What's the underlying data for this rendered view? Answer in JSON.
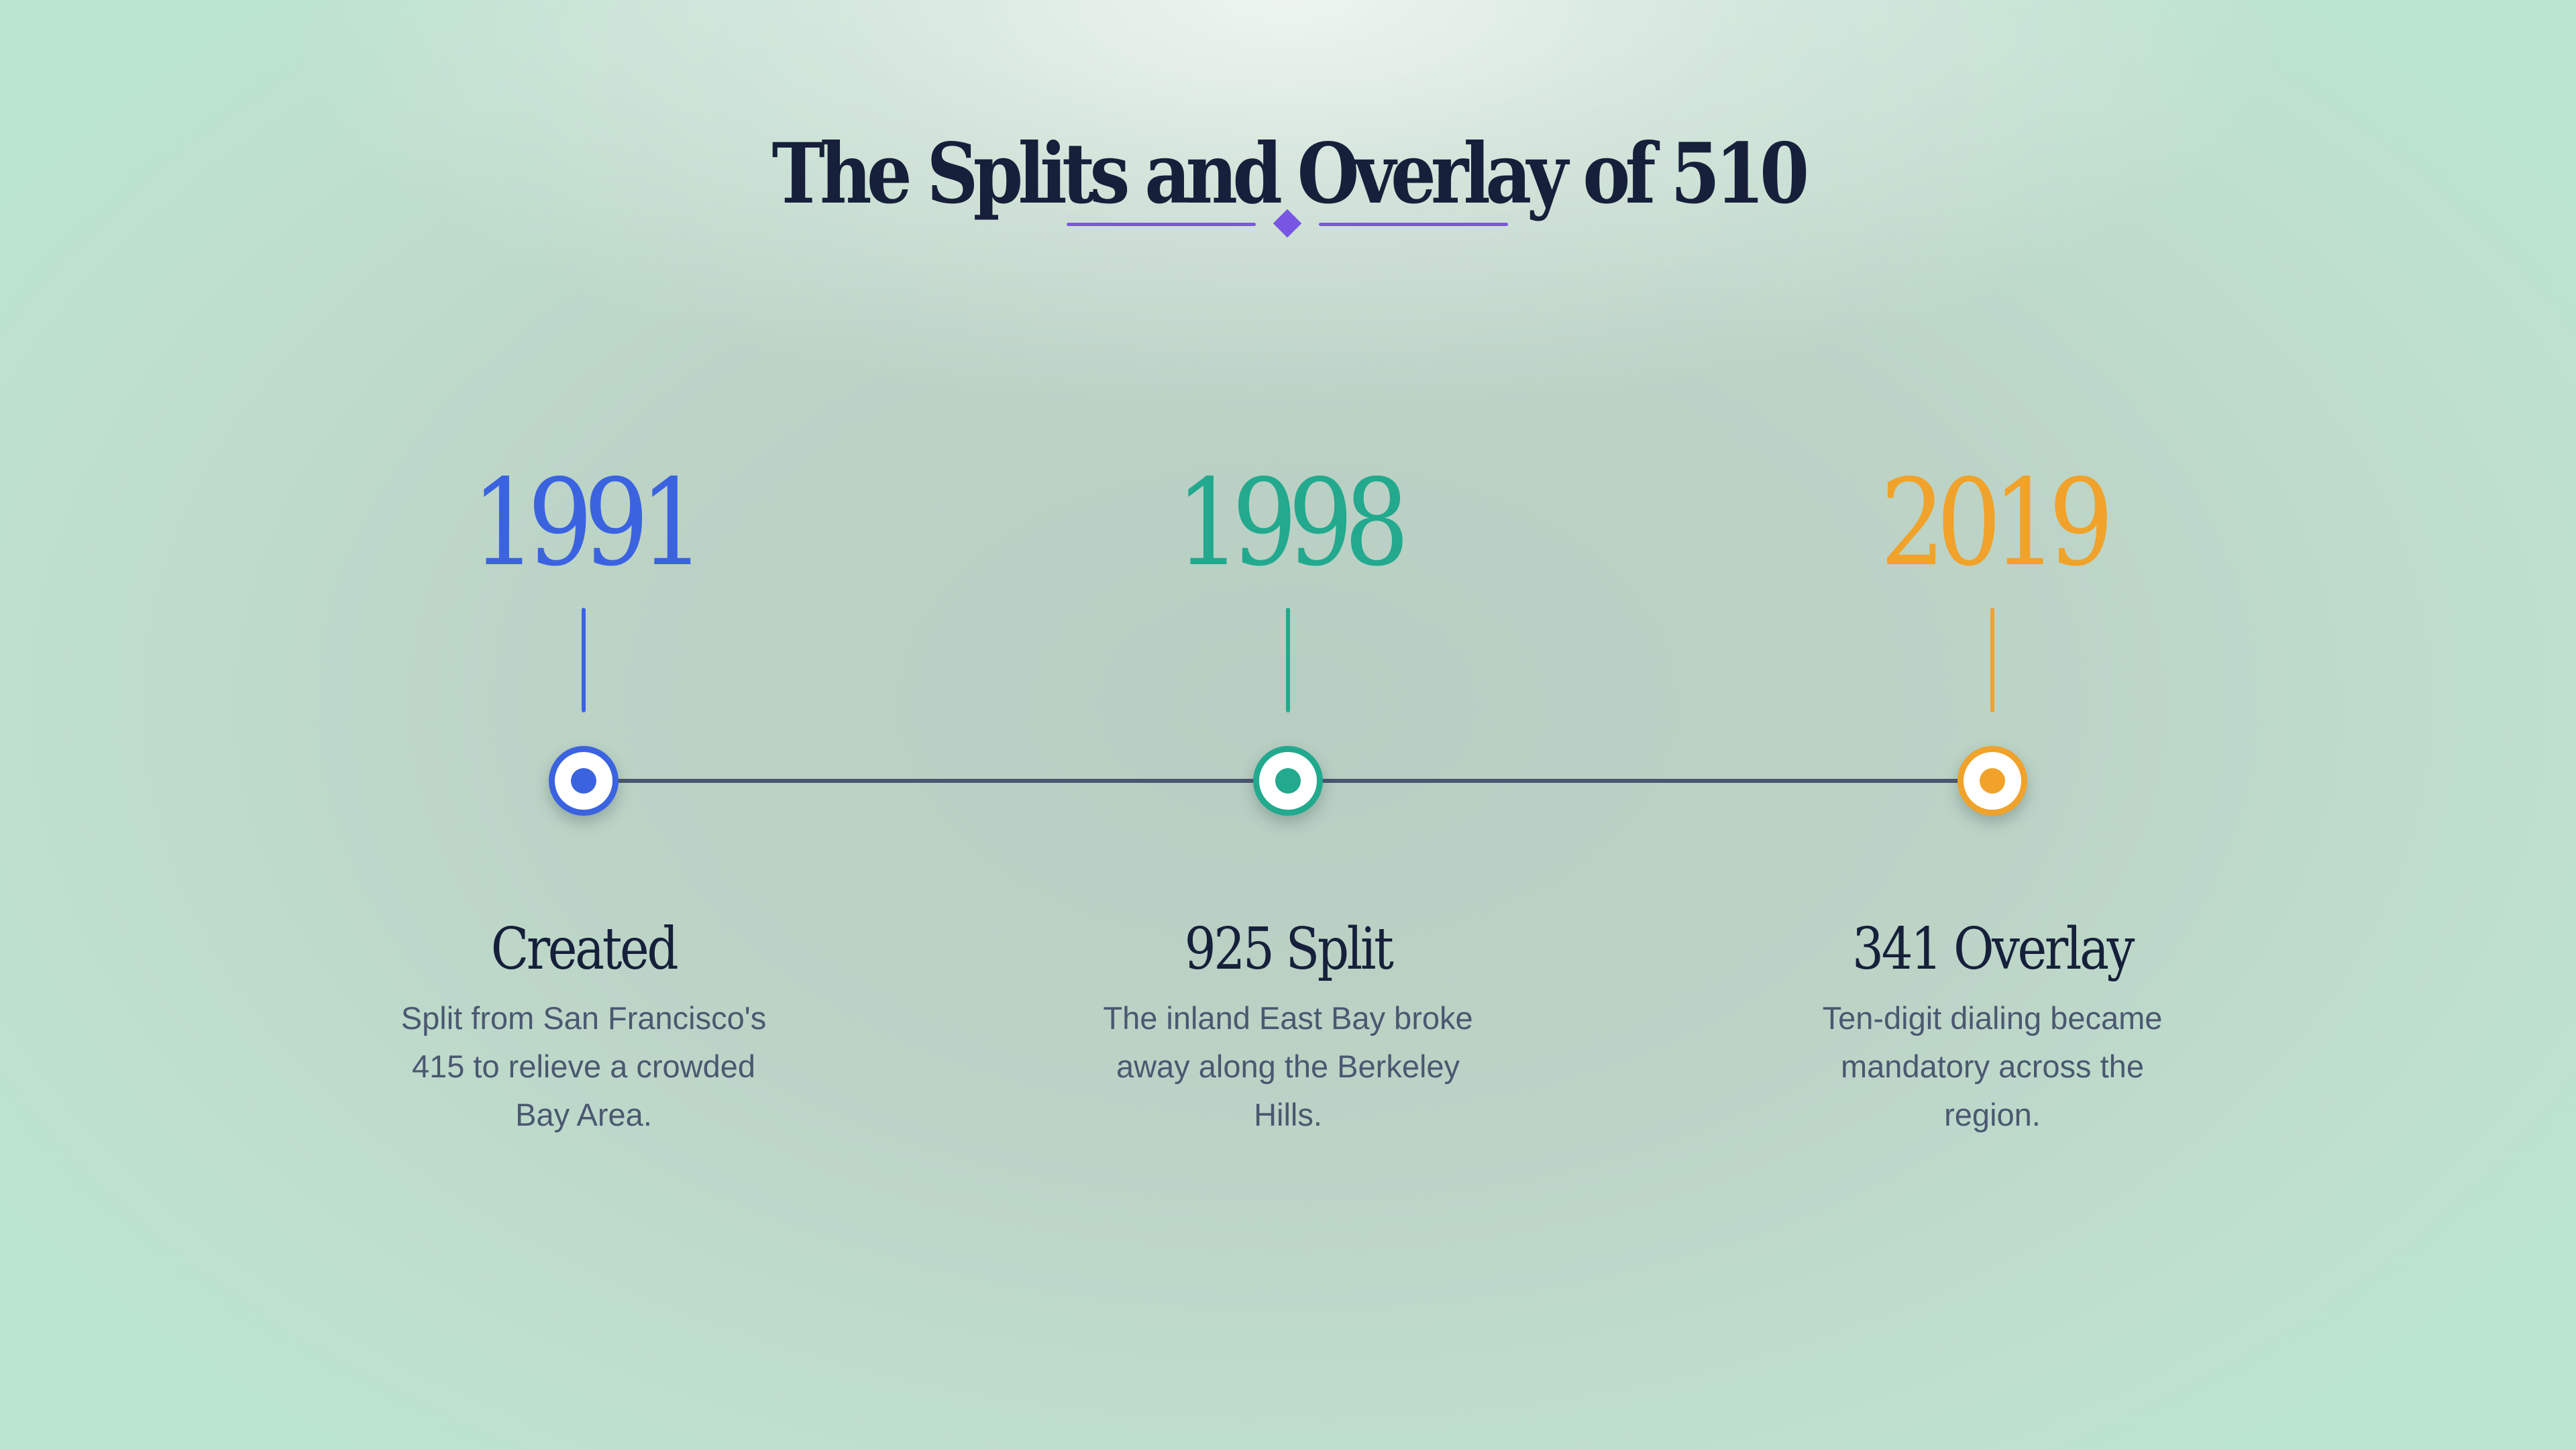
{
  "title": "The Splits and Overlay of 510",
  "accent_color": "#7856e3",
  "track_color": "#4b5670",
  "events": [
    {
      "year": "1991",
      "label": "Created",
      "description": "Split from San Francisco's 415 to relieve a crowded Bay Area.",
      "color": "#3b63e0"
    },
    {
      "year": "1998",
      "label": "925 Split",
      "description": "The inland East Bay broke away along the Berkeley Hills.",
      "color": "#22a98e"
    },
    {
      "year": "2019",
      "label": "341 Overlay",
      "description": "Ten-digit dialing became mandatory across the region.",
      "color": "#f0a22a"
    }
  ]
}
